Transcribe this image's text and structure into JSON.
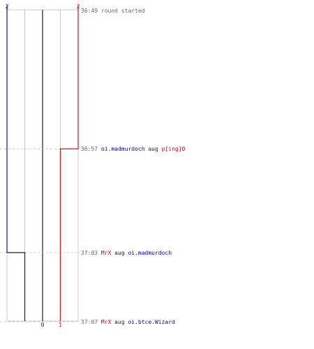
{
  "chart_data": {
    "type": "step",
    "x_ticks": [
      "2",
      "0",
      "1",
      "2"
    ],
    "x_tick_colors": [
      "#0000aa",
      "#222222",
      "#cc0000",
      "#cc0000"
    ],
    "x_tick_positions": [
      "top",
      "bottom",
      "bottom",
      "top"
    ],
    "series": [
      {
        "color": "#1111aa",
        "x": [
          2,
          2,
          1,
          1
        ],
        "time": [
          "36:49",
          "37:03",
          "37:03",
          "37:07"
        ]
      },
      {
        "color": "#dd1111",
        "x": [
          2,
          2,
          1,
          1
        ],
        "time": [
          "36:49",
          "36:57",
          "36:57",
          "37:07"
        ]
      }
    ],
    "y_range": [
      "36:49",
      "37:07"
    ],
    "grid": true,
    "events": [
      {
        "time": "36:49",
        "parts": [
          {
            "text": "round started",
            "color": "#666666"
          }
        ]
      },
      {
        "time": "36:57",
        "parts": [
          {
            "text": "oi.madmurdoch",
            "color": "#0000aa"
          },
          {
            "text": " aug ",
            "color": "#222222"
          },
          {
            "text": "p[ing]0",
            "color": "#cc0000"
          }
        ]
      },
      {
        "time": "37:03",
        "parts": [
          {
            "text": "MrX",
            "color": "#cc0000"
          },
          {
            "text": " aug ",
            "color": "#222222"
          },
          {
            "text": "oi.madmurdoch",
            "color": "#0000aa"
          }
        ]
      },
      {
        "time": "37:07",
        "parts": [
          {
            "text": "MrX",
            "color": "#cc0000"
          },
          {
            "text": " aug ",
            "color": "#222222"
          },
          {
            "text": "oi.btce.Wizard",
            "color": "#0000aa"
          }
        ]
      }
    ]
  }
}
